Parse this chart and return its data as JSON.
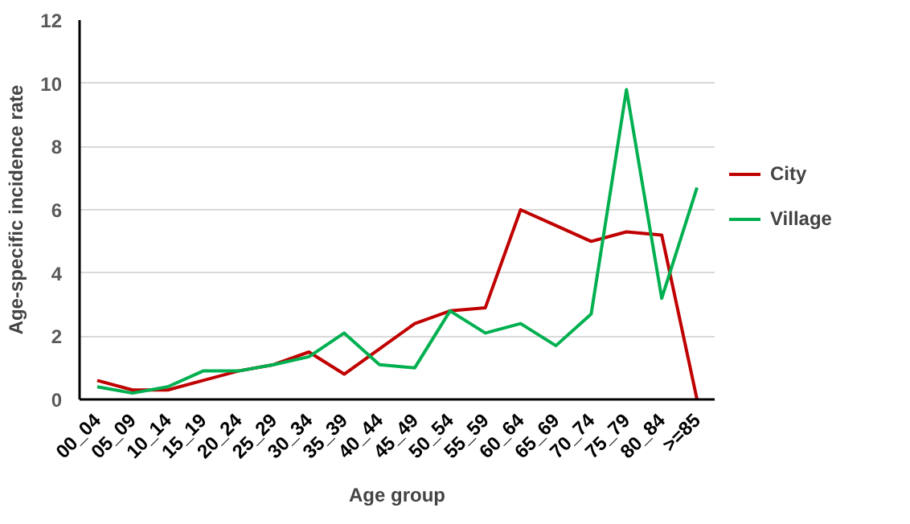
{
  "chart_data": {
    "type": "line",
    "xlabel": "Age group",
    "ylabel": "Age-specific incidence rate",
    "categories": [
      "00_04",
      "05_09",
      "10_14",
      "15_19",
      "20_24",
      "25_29",
      "30_34",
      "35_39",
      "40_44",
      "45_49",
      "50_54",
      "55_59",
      "60_64",
      "65_69",
      "70_74",
      "75_79",
      "80_84",
      ">=85"
    ],
    "series": [
      {
        "name": "City",
        "color": "#c00000",
        "values": [
          0.6,
          0.3,
          0.3,
          0.6,
          0.9,
          1.1,
          1.5,
          0.8,
          1.6,
          2.4,
          2.8,
          2.9,
          6.0,
          5.5,
          5.0,
          5.3,
          5.2,
          0
        ]
      },
      {
        "name": "Village",
        "color": "#00b050",
        "values": [
          0.4,
          0.2,
          0.4,
          0.9,
          0.9,
          1.1,
          1.35,
          2.1,
          1.1,
          1.0,
          2.8,
          2.1,
          2.4,
          1.7,
          2.7,
          9.8,
          3.2,
          6.7
        ]
      }
    ],
    "ylim": [
      0,
      12
    ],
    "yticks": [
      0,
      2,
      4,
      6,
      8,
      10,
      12
    ],
    "grid": "y",
    "legend": "right",
    "marker": "none",
    "line_style": "solid"
  }
}
